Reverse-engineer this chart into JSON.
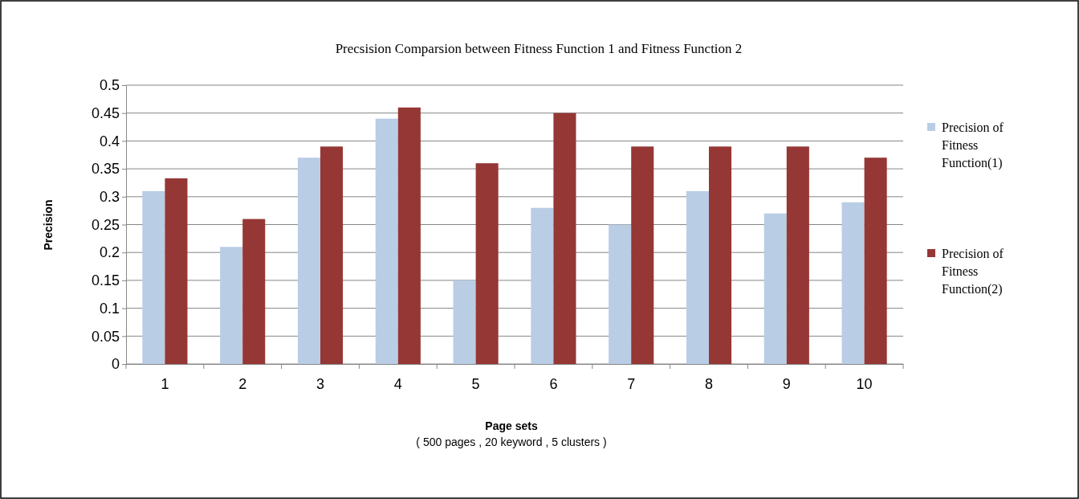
{
  "chart_data": {
    "type": "bar",
    "title": "Precsision Comparsion between Fitness Function 1 and Fitness Function 2",
    "xlabel": "Page sets",
    "ylabel": "Precision",
    "annotations": [
      "( 500 pages , 20 keyword , 5 clusters )"
    ],
    "categories": [
      "1",
      "2",
      "3",
      "4",
      "5",
      "6",
      "7",
      "8",
      "9",
      "10"
    ],
    "series": [
      {
        "name": "Precision of Fitness Function(1)",
        "color": "#b9cde5",
        "values": [
          0.31,
          0.21,
          0.37,
          0.44,
          0.15,
          0.28,
          0.25,
          0.31,
          0.27,
          0.29
        ]
      },
      {
        "name": "Precision of Fitness Function(2)",
        "color": "#953735",
        "values": [
          0.333,
          0.26,
          0.39,
          0.46,
          0.36,
          0.45,
          0.39,
          0.39,
          0.39,
          0.37
        ]
      }
    ],
    "ylim": [
      0,
      0.5
    ],
    "yticks": [
      0,
      0.05,
      0.1,
      0.15,
      0.2,
      0.25,
      0.3,
      0.35,
      0.4,
      0.45,
      0.5
    ],
    "grid": "y",
    "legend": "right"
  }
}
